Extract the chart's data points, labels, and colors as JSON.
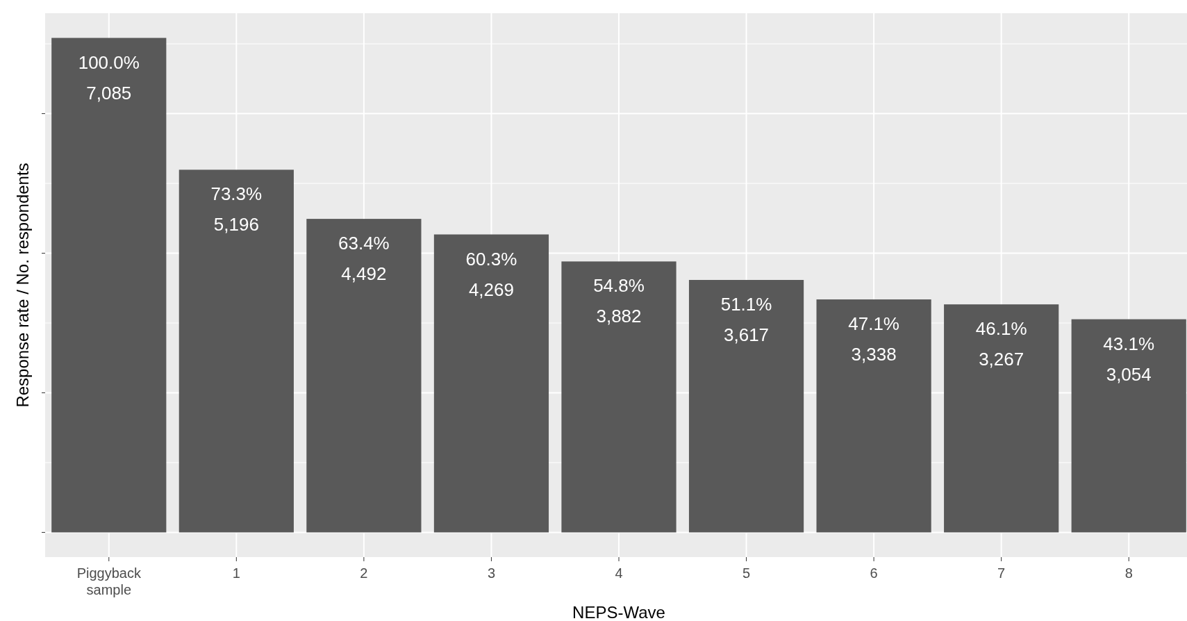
{
  "chart_data": {
    "type": "bar",
    "xlabel": "NEPS-Wave",
    "ylabel": "Response rate / No. respondents",
    "categories": [
      "Piggyback sample",
      "1",
      "2",
      "3",
      "4",
      "5",
      "6",
      "7",
      "8"
    ],
    "values": [
      7085,
      5196,
      4492,
      4269,
      3882,
      3617,
      3338,
      3267,
      3054
    ],
    "value_labels": [
      "100.0%\n7,085",
      "73.3%\n5,196",
      "63.4%\n4,492",
      "60.3%\n4,269",
      "54.8%\n3,882",
      "51.1%\n3,617",
      "47.1%\n3,338",
      "46.1%\n3,267",
      "43.1%\n3,054"
    ],
    "color": "#595959",
    "ylim": [
      -354,
      7439
    ],
    "yticks": [
      {
        "value": 0,
        "label": null
      },
      {
        "value": 2000,
        "label": null
      },
      {
        "value": 4000,
        "label": null
      },
      {
        "value": 6000,
        "label": null
      }
    ],
    "tick_labels": "x",
    "grid": true
  }
}
